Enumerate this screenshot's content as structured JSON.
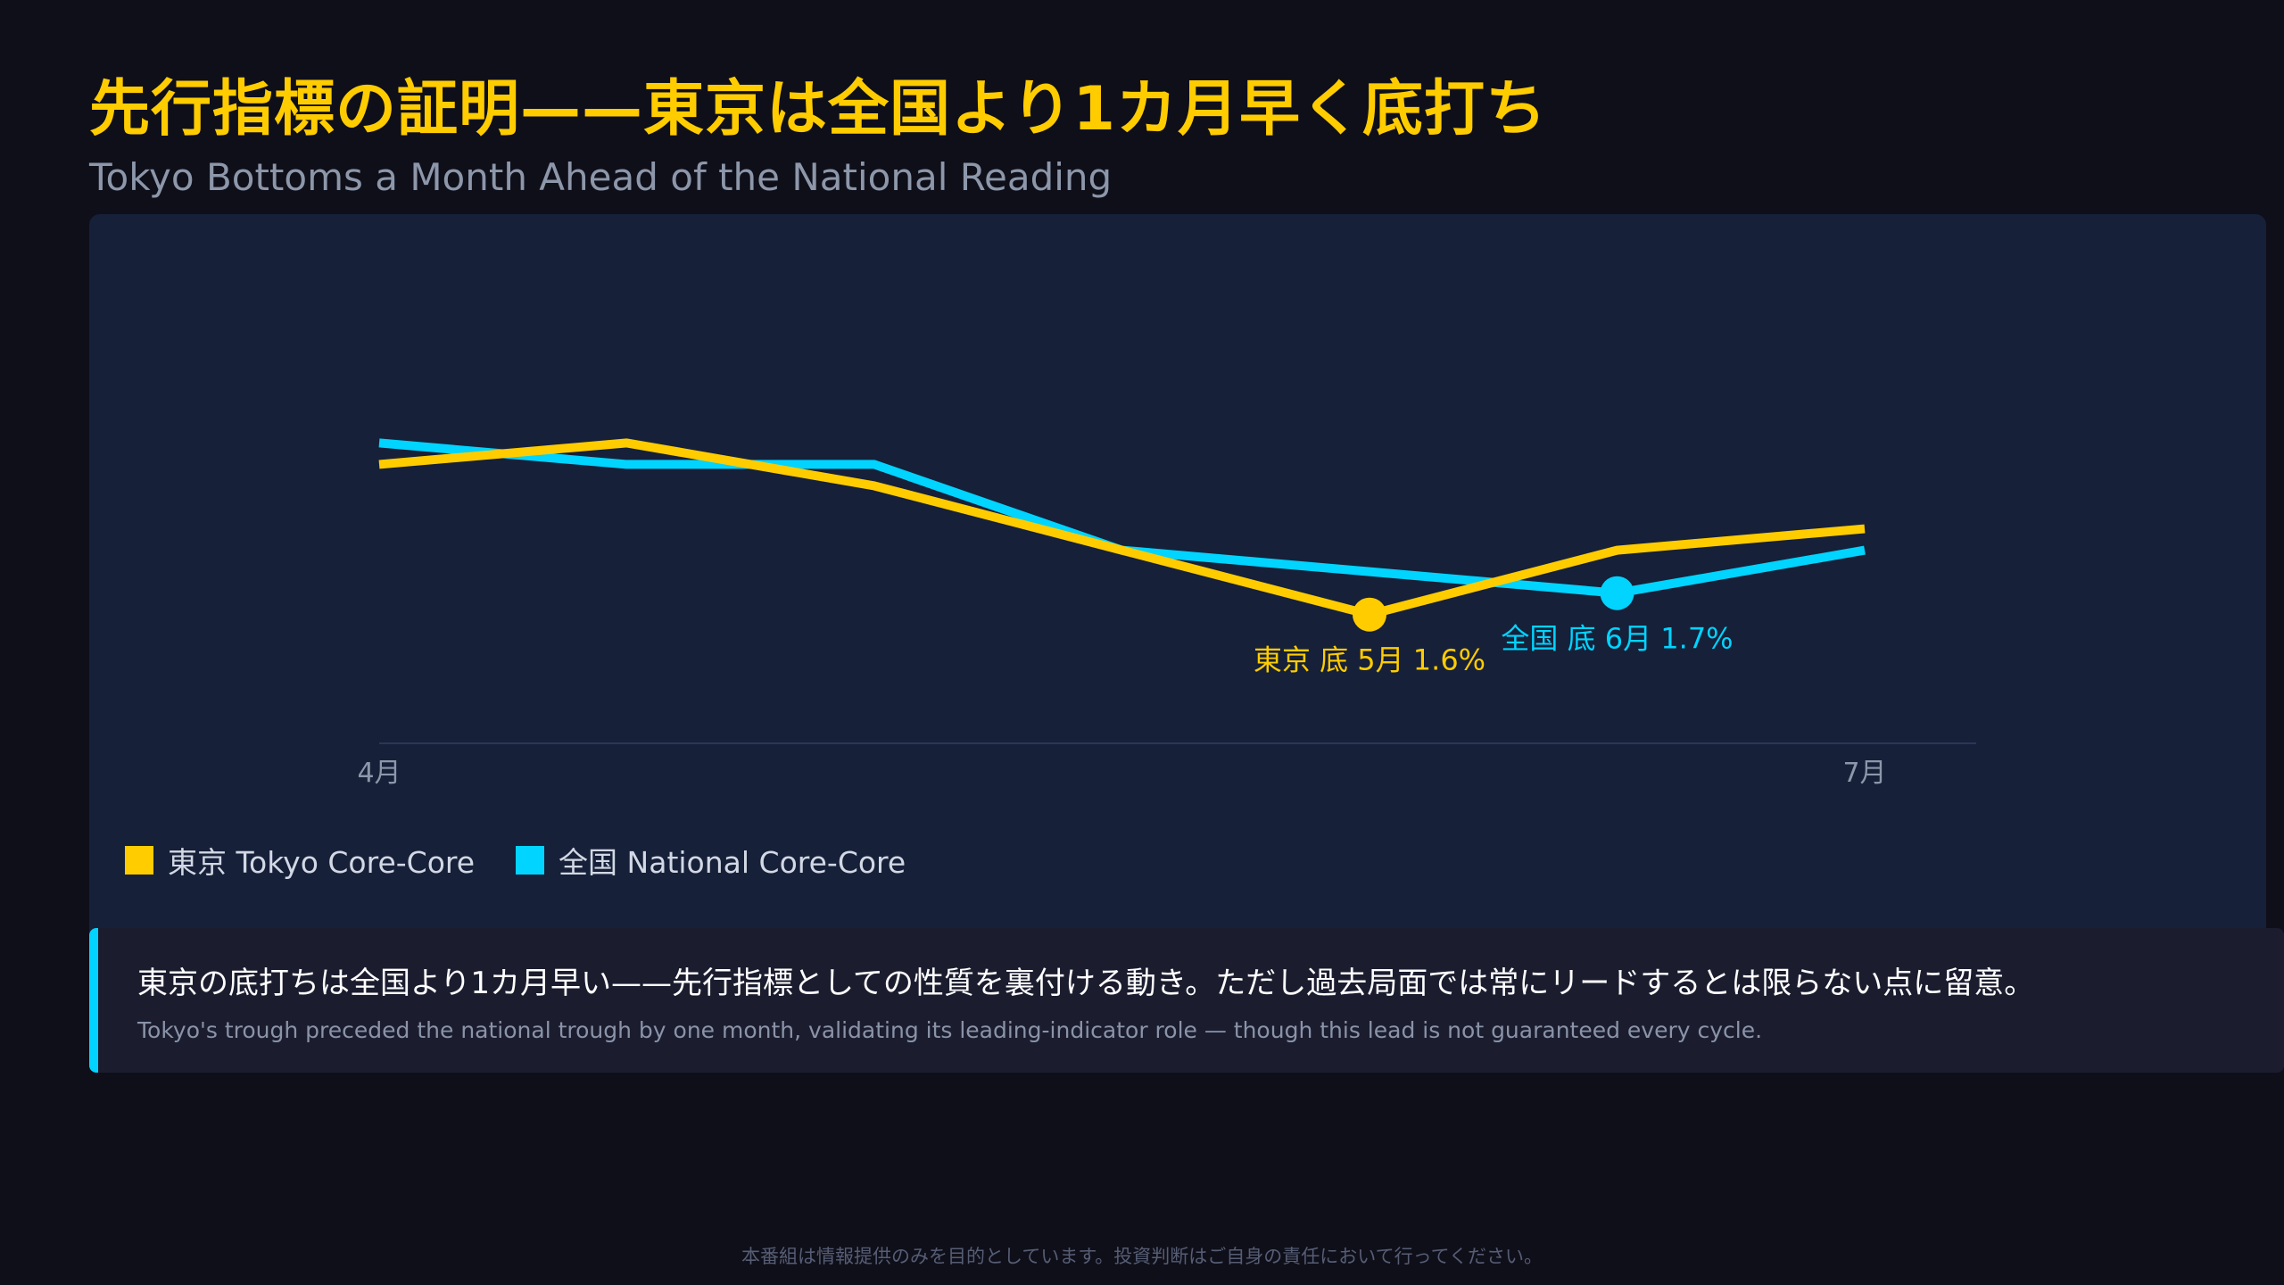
{
  "title": "先行指標の証明——東京は全国より1カ月早く底打ち",
  "subtitle": "Tokyo Bottoms a Month Ahead of the National Reading",
  "colors": {
    "background": "#0f0f1a",
    "panel": "#162039",
    "tokyo": "#ffcc00",
    "national": "#00d4ff",
    "axis_text": "#8d97aa"
  },
  "chart_data": {
    "type": "line",
    "x": [
      "4月",
      "",
      "",
      "",
      "5月",
      "6月",
      "7月"
    ],
    "tick_labels": [
      {
        "index": 0,
        "label": "4月"
      },
      {
        "index": 6,
        "label": "7月"
      }
    ],
    "series": [
      {
        "name": "東京 Tokyo Core-Core",
        "color": "#ffcc00",
        "values": [
          2.3,
          2.4,
          2.2,
          1.9,
          1.6,
          1.9,
          2.0
        ]
      },
      {
        "name": "全国 National Core-Core",
        "color": "#00d4ff",
        "values": [
          2.4,
          2.3,
          2.3,
          1.9,
          1.8,
          1.7,
          1.9
        ]
      }
    ],
    "annotations": [
      {
        "series": 0,
        "index": 4,
        "label": "東京 底 5月 1.6%",
        "color": "#ffcc00"
      },
      {
        "series": 1,
        "index": 5,
        "label": "全国 底 6月 1.7%",
        "color": "#00d4ff"
      }
    ],
    "ylim": [
      1.0,
      3.3
    ],
    "grid": false,
    "legend_position": "bottom-left"
  },
  "legend": [
    {
      "label": "東京 Tokyo Core-Core",
      "color": "#ffcc00"
    },
    {
      "label": "全国 National Core-Core",
      "color": "#00d4ff"
    }
  ],
  "callout": {
    "main": "東京の底打ちは全国より1カ月早い——先行指標としての性質を裏付ける動き。ただし過去局面では常にリードするとは限らない点に留意。",
    "sub": "Tokyo's trough preceded the national trough by one month, validating its leading-indicator role — though this lead is not guaranteed every cycle."
  },
  "footer": "本番組は情報提供のみを目的としています。投資判断はご自身の責任において行ってください。"
}
